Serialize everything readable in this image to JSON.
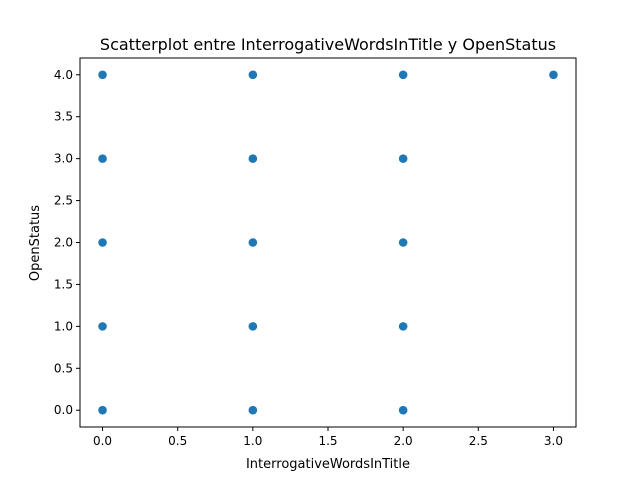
{
  "chart_data": {
    "type": "scatter",
    "title": "Scatterplot entre InterrogativeWordsInTitle y OpenStatus",
    "xlabel": "InterrogativeWordsInTitle",
    "ylabel": "OpenStatus",
    "xlim": [
      -0.15,
      3.15
    ],
    "ylim": [
      -0.2,
      4.2
    ],
    "xticks": [
      "0.0",
      "0.5",
      "1.0",
      "1.5",
      "2.0",
      "2.5",
      "3.0"
    ],
    "yticks": [
      "0.0",
      "0.5",
      "1.0",
      "1.5",
      "2.0",
      "2.5",
      "3.0",
      "3.5",
      "4.0"
    ],
    "grid": false,
    "legend": "none",
    "marker_color": "#1f77b4",
    "points": [
      {
        "x": 0,
        "y": 0
      },
      {
        "x": 0,
        "y": 1
      },
      {
        "x": 0,
        "y": 2
      },
      {
        "x": 0,
        "y": 3
      },
      {
        "x": 0,
        "y": 4
      },
      {
        "x": 1,
        "y": 0
      },
      {
        "x": 1,
        "y": 1
      },
      {
        "x": 1,
        "y": 2
      },
      {
        "x": 1,
        "y": 3
      },
      {
        "x": 1,
        "y": 4
      },
      {
        "x": 2,
        "y": 0
      },
      {
        "x": 2,
        "y": 1
      },
      {
        "x": 2,
        "y": 2
      },
      {
        "x": 2,
        "y": 3
      },
      {
        "x": 2,
        "y": 4
      },
      {
        "x": 3,
        "y": 4
      }
    ]
  }
}
